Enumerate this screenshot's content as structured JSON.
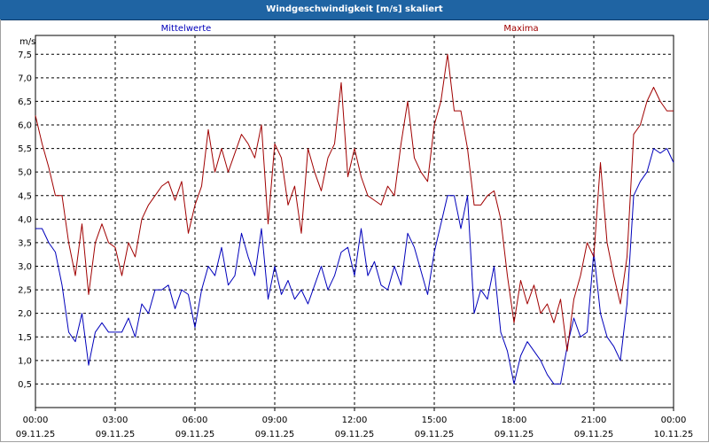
{
  "window": {
    "title": "Windgeschwindigkeit [m/s] skaliert"
  },
  "chart_data": {
    "type": "line",
    "ylabel": "m/s",
    "ylim": [
      0,
      7.9
    ],
    "yticks": [
      0.5,
      1.0,
      1.5,
      2.0,
      2.5,
      3.0,
      3.5,
      4.0,
      4.5,
      5.0,
      5.5,
      6.0,
      6.5,
      7.0,
      7.5
    ],
    "xlim": [
      0,
      24
    ],
    "xticks": [
      {
        "x": 0,
        "time": "00:00",
        "date": "09.11.25"
      },
      {
        "x": 3,
        "time": "03:00",
        "date": "09.11.25"
      },
      {
        "x": 6,
        "time": "06:00",
        "date": "09.11.25"
      },
      {
        "x": 9,
        "time": "09:00",
        "date": "09.11.25"
      },
      {
        "x": 12,
        "time": "12:00",
        "date": "09.11.25"
      },
      {
        "x": 15,
        "time": "15:00",
        "date": "09.11.25"
      },
      {
        "x": 18,
        "time": "18:00",
        "date": "09.11.25"
      },
      {
        "x": 21,
        "time": "21:00",
        "date": "09.11.25"
      },
      {
        "x": 24,
        "time": "00:00",
        "date": "10.11.25"
      }
    ],
    "grid": true,
    "legend_position": "top",
    "series": [
      {
        "name": "Mittelwerte",
        "color": "#0000bb",
        "x": [
          0,
          0.25,
          0.5,
          0.75,
          1.0,
          1.25,
          1.5,
          1.75,
          2.0,
          2.25,
          2.5,
          2.75,
          3.0,
          3.25,
          3.5,
          3.75,
          4.0,
          4.25,
          4.5,
          4.75,
          5.0,
          5.25,
          5.5,
          5.75,
          6.0,
          6.25,
          6.5,
          6.75,
          7.0,
          7.25,
          7.5,
          7.75,
          8.0,
          8.25,
          8.5,
          8.75,
          9.0,
          9.25,
          9.5,
          9.75,
          10.0,
          10.25,
          10.5,
          10.75,
          11.0,
          11.25,
          11.5,
          11.75,
          12.0,
          12.25,
          12.5,
          12.75,
          13.0,
          13.25,
          13.5,
          13.75,
          14.0,
          14.25,
          14.5,
          14.75,
          15.0,
          15.25,
          15.5,
          15.75,
          16.0,
          16.25,
          16.5,
          16.75,
          17.0,
          17.25,
          17.5,
          17.75,
          18.0,
          18.25,
          18.5,
          18.75,
          19.0,
          19.25,
          19.5,
          19.75,
          20.0,
          20.25,
          20.5,
          20.75,
          21.0,
          21.25,
          21.5,
          21.75,
          22.0,
          22.25,
          22.5,
          22.75,
          23.0,
          23.25,
          23.5,
          23.75,
          24.0
        ],
        "values": [
          3.8,
          3.8,
          3.5,
          3.3,
          2.6,
          1.6,
          1.4,
          2.0,
          0.9,
          1.6,
          1.8,
          1.6,
          1.6,
          1.6,
          1.9,
          1.5,
          2.2,
          2.0,
          2.5,
          2.5,
          2.6,
          2.1,
          2.5,
          2.4,
          1.7,
          2.5,
          3.0,
          2.8,
          3.4,
          2.6,
          2.8,
          3.7,
          3.2,
          2.8,
          3.8,
          2.3,
          3.0,
          2.4,
          2.7,
          2.3,
          2.5,
          2.2,
          2.6,
          3.0,
          2.5,
          2.8,
          3.3,
          3.4,
          2.8,
          3.8,
          2.8,
          3.1,
          2.6,
          2.5,
          3.0,
          2.6,
          3.7,
          3.4,
          2.9,
          2.4,
          3.3,
          3.9,
          4.5,
          4.5,
          3.8,
          4.5,
          2.0,
          2.5,
          2.3,
          3.0,
          1.6,
          1.2,
          0.5,
          1.1,
          1.4,
          1.2,
          1.0,
          0.7,
          0.5,
          0.5,
          1.3,
          1.9,
          1.5,
          1.6,
          3.3,
          2.0,
          1.5,
          1.3,
          1.0,
          2.2,
          4.5,
          4.8,
          5.0,
          5.5,
          5.4,
          5.5,
          5.2
        ]
      },
      {
        "name": "Maxima",
        "color": "#a00000",
        "x": [
          0,
          0.25,
          0.5,
          0.75,
          1.0,
          1.25,
          1.5,
          1.75,
          2.0,
          2.25,
          2.5,
          2.75,
          3.0,
          3.25,
          3.5,
          3.75,
          4.0,
          4.25,
          4.5,
          4.75,
          5.0,
          5.25,
          5.5,
          5.75,
          6.0,
          6.25,
          6.5,
          6.75,
          7.0,
          7.25,
          7.5,
          7.75,
          8.0,
          8.25,
          8.5,
          8.75,
          9.0,
          9.25,
          9.5,
          9.75,
          10.0,
          10.25,
          10.5,
          10.75,
          11.0,
          11.25,
          11.5,
          11.75,
          12.0,
          12.25,
          12.5,
          12.75,
          13.0,
          13.25,
          13.5,
          13.75,
          14.0,
          14.25,
          14.5,
          14.75,
          15.0,
          15.25,
          15.5,
          15.75,
          16.0,
          16.25,
          16.5,
          16.75,
          17.0,
          17.25,
          17.5,
          17.75,
          18.0,
          18.25,
          18.5,
          18.75,
          19.0,
          19.25,
          19.5,
          19.75,
          20.0,
          20.25,
          20.5,
          20.75,
          21.0,
          21.25,
          21.5,
          21.75,
          22.0,
          22.25,
          22.5,
          22.75,
          23.0,
          23.25,
          23.5,
          23.75,
          24.0
        ],
        "values": [
          6.2,
          5.6,
          5.1,
          4.5,
          4.5,
          3.5,
          2.8,
          3.9,
          2.4,
          3.5,
          3.9,
          3.5,
          3.4,
          2.8,
          3.5,
          3.2,
          4.0,
          4.3,
          4.5,
          4.7,
          4.8,
          4.4,
          4.8,
          3.7,
          4.3,
          4.7,
          5.9,
          5.0,
          5.5,
          5.0,
          5.4,
          5.8,
          5.6,
          5.3,
          6.0,
          3.9,
          5.6,
          5.3,
          4.3,
          4.7,
          3.7,
          5.5,
          5.0,
          4.6,
          5.3,
          5.6,
          6.9,
          4.9,
          5.5,
          4.9,
          4.5,
          4.4,
          4.3,
          4.7,
          4.5,
          5.6,
          6.5,
          5.3,
          5.0,
          4.8,
          6.0,
          6.5,
          7.5,
          6.3,
          6.3,
          5.5,
          4.3,
          4.3,
          4.5,
          4.6,
          4.0,
          2.8,
          1.8,
          2.7,
          2.2,
          2.6,
          2.0,
          2.2,
          1.8,
          2.3,
          1.2,
          2.3,
          2.8,
          3.5,
          3.2,
          5.2,
          3.5,
          2.8,
          2.2,
          3.2,
          5.8,
          6.0,
          6.5,
          6.8,
          6.5,
          6.3,
          6.3
        ]
      }
    ]
  }
}
